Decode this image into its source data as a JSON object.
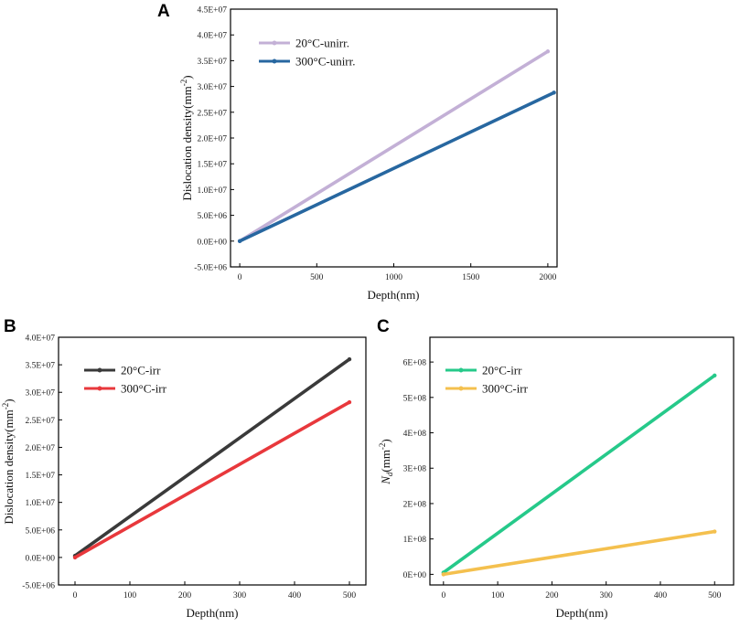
{
  "chart_data": [
    {
      "panel_label": "A",
      "type": "line",
      "xlabel": "Depth(nm)",
      "ylabel": "Dislocation density(mm",
      "ylabel_sup": "-2",
      "ylabel_end": ")",
      "xlim": [
        -60,
        2060
      ],
      "ylim": [
        -5000000,
        45000000
      ],
      "xticks": [
        0,
        500,
        1000,
        1500,
        2000
      ],
      "xtick_labels": [
        "0",
        "500",
        "1000",
        "1500",
        "2000"
      ],
      "yticks": [
        -5000000,
        0,
        5000000,
        10000000,
        15000000,
        20000000,
        25000000,
        30000000,
        35000000,
        40000000,
        45000000
      ],
      "ytick_labels": [
        "-5.0E+06",
        "0.0E+00",
        "5.0E+06",
        "1.0E+07",
        "1.5E+07",
        "2.0E+07",
        "2.5E+07",
        "3.0E+07",
        "3.5E+07",
        "4.0E+07",
        "4.5E+07"
      ],
      "series": [
        {
          "name": "20°C-unirr.",
          "color": "#c3b0d6",
          "x": [
            0,
            2000
          ],
          "values": [
            0,
            36800000
          ]
        },
        {
          "name": "300°C-unirr.",
          "color": "#2767a0",
          "x": [
            0,
            2040
          ],
          "values": [
            0,
            28800000
          ]
        }
      ]
    },
    {
      "panel_label": "B",
      "type": "line",
      "xlabel": "Depth(nm)",
      "ylabel": "Dislocation density(mm",
      "ylabel_sup": "-2",
      "ylabel_end": ")",
      "xlim": [
        -30,
        530
      ],
      "ylim": [
        -5000000,
        40000000
      ],
      "xticks": [
        0,
        100,
        200,
        300,
        400,
        500
      ],
      "xtick_labels": [
        "0",
        "100",
        "200",
        "300",
        "400",
        "500"
      ],
      "yticks": [
        -5000000,
        0,
        5000000,
        10000000,
        15000000,
        20000000,
        25000000,
        30000000,
        35000000,
        40000000
      ],
      "ytick_labels": [
        "-5.0E+06",
        "0.0E+00",
        "5.0E+06",
        "1.0E+07",
        "1.5E+07",
        "2.0E+07",
        "2.5E+07",
        "3.0E+07",
        "3.5E+07",
        "4.0E+07"
      ],
      "series": [
        {
          "name": "20°C-irr",
          "color": "#3a3a3a",
          "x": [
            0,
            500
          ],
          "values": [
            300000,
            36000000
          ]
        },
        {
          "name": "300°C-irr",
          "color": "#e8383c",
          "x": [
            0,
            500
          ],
          "values": [
            0,
            28200000
          ]
        }
      ]
    },
    {
      "panel_label": "C",
      "type": "line",
      "xlabel": "Depth(nm)",
      "ylabel": "N",
      "ylabel_sub": "d",
      "ylabel_end": "(mm",
      "ylabel_sup": "-2",
      "ylabel_end2": ")",
      "xlim": [
        -25,
        535
      ],
      "ylim": [
        -30000000,
        670000000
      ],
      "xticks": [
        0,
        100,
        200,
        300,
        400,
        500
      ],
      "xtick_labels": [
        "0",
        "100",
        "200",
        "300",
        "400",
        "500"
      ],
      "yticks": [
        0,
        100000000,
        200000000,
        300000000,
        400000000,
        500000000,
        600000000
      ],
      "ytick_labels": [
        "0E+00",
        "1E+08",
        "2E+08",
        "3E+08",
        "4E+08",
        "5E+08",
        "6E+08"
      ],
      "series": [
        {
          "name": "20°C-irr",
          "color": "#26c98a",
          "x": [
            0,
            500
          ],
          "values": [
            5000000,
            562000000
          ]
        },
        {
          "name": "300°C-irr",
          "color": "#f4c04e",
          "x": [
            0,
            500
          ],
          "values": [
            0,
            121000000
          ]
        }
      ]
    }
  ]
}
